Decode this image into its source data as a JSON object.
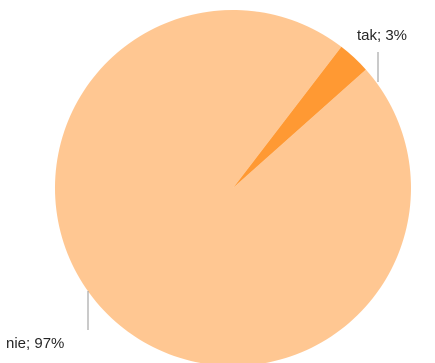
{
  "chart_data": {
    "type": "pie",
    "slices": [
      {
        "label": "tak",
        "value": 3,
        "display": "tak; 3%",
        "color": "#ff9933"
      },
      {
        "label": "nie",
        "value": 97,
        "display": "nie; 97%",
        "color": "#ffc792"
      }
    ],
    "title": "",
    "legend": "none"
  }
}
